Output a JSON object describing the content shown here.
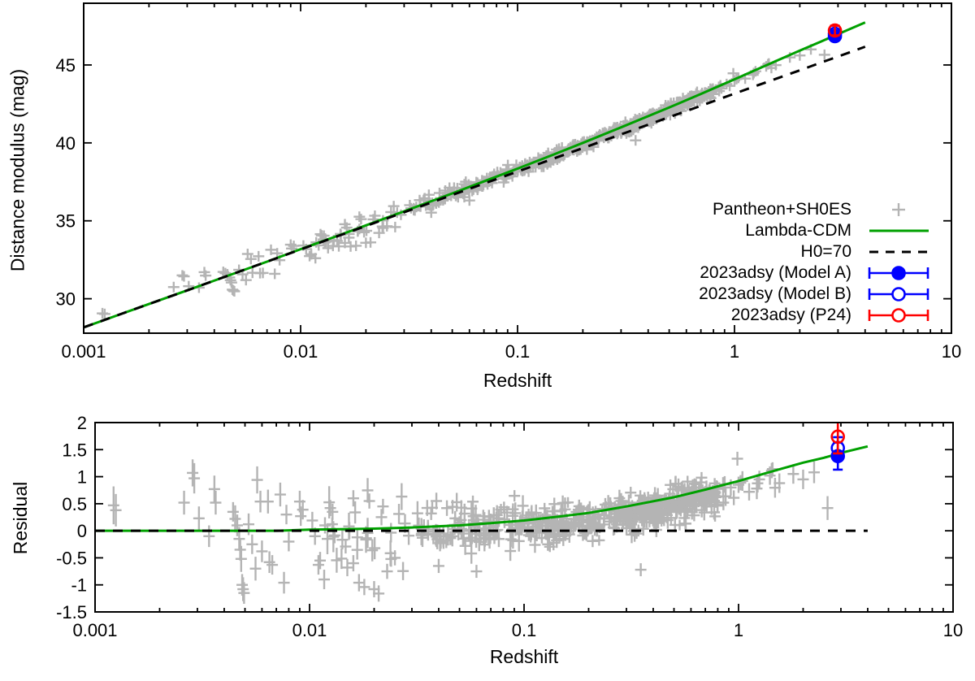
{
  "colors": {
    "pantheon": "#b4b4b4",
    "lcdm": "#00a000",
    "h070": "#000000",
    "model_a": "#0000ff",
    "model_b": "#0000ff",
    "p24": "#ff0000",
    "frame": "#000000",
    "background": "#ffffff"
  },
  "legend": {
    "entries": [
      {
        "label": "Pantheon+SH0ES",
        "sample": "plus",
        "color": "#b4b4b4"
      },
      {
        "label": "Lambda-CDM",
        "sample": "solid-line",
        "color": "#00a000"
      },
      {
        "label": "H0=70",
        "sample": "dashed-line",
        "color": "#000000"
      },
      {
        "label": "2023adsy (Model A)",
        "sample": "errorbar-filled-circle",
        "color": "#0000ff"
      },
      {
        "label": "2023adsy (Model B)",
        "sample": "errorbar-open-circle",
        "color": "#0000ff"
      },
      {
        "label": "2023adsy (P24)",
        "sample": "errorbar-open-circle",
        "color": "#ff0000"
      }
    ]
  },
  "chart_data": {
    "type": "scatter",
    "xscale": "log",
    "panels": [
      {
        "name": "hubble-diagram",
        "xlabel": "Redshift",
        "ylabel": "Distance modulus (mag)",
        "xlim": [
          0.001,
          10
        ],
        "ylim": [
          27.79,
          48.96
        ],
        "xtick_labels": [
          "0.001",
          "0.01",
          "0.1",
          "1",
          "10"
        ],
        "ytick_values": [
          30,
          35,
          40,
          45
        ],
        "ytick_labels": [
          "30",
          "35",
          "40",
          "45"
        ],
        "grid": false
      },
      {
        "name": "residuals",
        "xlabel": "Redshift",
        "ylabel": "Residual",
        "xlim": [
          0.001,
          10
        ],
        "ylim": [
          -1.5,
          2
        ],
        "xtick_labels": [
          "0.001",
          "0.01",
          "0.1",
          "1",
          "10"
        ],
        "ytick_values": [
          2,
          1.5,
          1,
          0.5,
          0,
          -0.5,
          -1,
          -1.5
        ],
        "ytick_labels": [
          "2",
          "1.5",
          "1",
          "0.5",
          "0",
          "-0.5",
          "-1",
          "-1.5"
        ],
        "grid": false
      }
    ],
    "models": {
      "note": "mu(z) samples; residual panel shows mu - mu_h070",
      "z": [
        0.001,
        0.0015,
        0.002,
        0.003,
        0.005,
        0.007,
        0.01,
        0.015,
        0.02,
        0.03,
        0.05,
        0.07,
        0.1,
        0.15,
        0.2,
        0.3,
        0.5,
        0.7,
        1.0,
        1.5,
        2.0,
        2.5,
        3.0,
        4.0
      ],
      "lcdm_mu": [
        28.16,
        29.04,
        29.66,
        30.54,
        31.65,
        32.38,
        33.18,
        34.07,
        34.71,
        35.61,
        36.76,
        37.53,
        38.35,
        39.31,
        40.0,
        41.0,
        42.27,
        43.14,
        44.08,
        45.16,
        45.92,
        46.5,
        46.98,
        47.73
      ],
      "h070_mu": [
        28.16,
        29.04,
        29.66,
        30.54,
        31.65,
        32.38,
        33.16,
        34.04,
        34.67,
        35.55,
        36.66,
        37.39,
        38.16,
        39.04,
        39.67,
        40.55,
        41.65,
        42.38,
        43.16,
        44.04,
        44.66,
        45.15,
        45.54,
        46.17
      ],
      "z_draw_max": 4.0
    },
    "sn2023adsy": {
      "z": 2.903,
      "points": [
        {
          "name": "2023adsy (Model A)",
          "mu": 46.85,
          "mu_err": 0.25,
          "residual": 1.38,
          "residual_err": 0.25,
          "marker": "filled-circle",
          "color": "#0000ff"
        },
        {
          "name": "2023adsy (Model B)",
          "mu": 47.0,
          "mu_err": 0.2,
          "residual": 1.53,
          "residual_err": 0.2,
          "marker": "open-circle",
          "color": "#0000ff"
        },
        {
          "name": "2023adsy (P24)",
          "mu": 47.21,
          "mu_err": 0.31,
          "residual": 1.74,
          "residual_err": 0.31,
          "marker": "open-circle",
          "color": "#ff0000"
        }
      ]
    },
    "pantheon": {
      "label": "Pantheon+SH0ES",
      "point_format": "[z, residual_vs_h070, err_mag]",
      "explicit_points": [
        [
          0.00122,
          0.47,
          0.35
        ],
        [
          0.00125,
          0.38,
          0.3
        ],
        [
          0.0026,
          0.52,
          0.22
        ],
        [
          0.00285,
          1.07,
          0.25
        ],
        [
          0.0029,
          0.97,
          0.28
        ],
        [
          0.00305,
          0.23,
          0.22
        ],
        [
          0.0034,
          -0.1,
          0.2
        ],
        [
          0.0036,
          0.77,
          0.25
        ],
        [
          0.00365,
          0.52,
          0.22
        ],
        [
          0.0044,
          0.35,
          0.18
        ],
        [
          0.0045,
          0.22,
          0.25
        ],
        [
          0.0046,
          0.1,
          0.2
        ],
        [
          0.0047,
          -0.15,
          0.22
        ],
        [
          0.00475,
          -0.35,
          0.2
        ],
        [
          0.0048,
          -0.52,
          0.24
        ],
        [
          0.00485,
          -1.0,
          0.2
        ],
        [
          0.0049,
          -1.08,
          0.22
        ],
        [
          0.00495,
          -1.15,
          0.2
        ],
        [
          0.0052,
          0.12,
          0.2
        ],
        [
          0.0054,
          -0.25,
          0.18
        ],
        [
          0.0056,
          -0.7,
          0.22
        ],
        [
          0.0057,
          0.94,
          0.25
        ],
        [
          0.0059,
          0.54,
          0.2
        ],
        [
          0.006,
          -0.38,
          0.2
        ],
        [
          0.0064,
          0.54,
          0.22
        ],
        [
          0.0065,
          -0.58,
          0.2
        ],
        [
          0.0067,
          -0.63,
          0.18
        ],
        [
          0.0073,
          0.67,
          0.22
        ],
        [
          0.0076,
          -0.96,
          0.2
        ],
        [
          0.0078,
          0.3,
          0.18
        ],
        [
          0.008,
          -0.2,
          0.18
        ],
        [
          0.009,
          0.54,
          0.2
        ],
        [
          0.0091,
          0.27,
          0.18
        ],
        [
          0.0093,
          0.39,
          0.18
        ],
        [
          0.0103,
          0.19,
          0.16
        ],
        [
          0.0106,
          -0.1,
          0.16
        ],
        [
          0.011,
          -0.63,
          0.18
        ],
        [
          0.0112,
          -0.55,
          0.16
        ],
        [
          0.0117,
          -0.9,
          0.18
        ],
        [
          0.0118,
          0.1,
          0.15
        ],
        [
          0.0125,
          0.42,
          0.15
        ],
        [
          0.0128,
          0.35,
          0.15
        ],
        [
          0.015,
          -0.68,
          0.16
        ],
        [
          0.016,
          -0.6,
          0.15
        ],
        [
          0.016,
          0.6,
          0.15
        ],
        [
          0.017,
          -0.96,
          0.16
        ],
        [
          0.018,
          -1.04,
          0.15
        ],
        [
          0.019,
          0.55,
          0.14
        ],
        [
          0.02,
          -1.08,
          0.15
        ],
        [
          0.021,
          -1.16,
          0.15
        ],
        [
          0.022,
          0.45,
          0.14
        ],
        [
          0.023,
          -0.75,
          0.14
        ],
        [
          0.025,
          -0.5,
          0.14
        ],
        [
          0.04,
          -0.65,
          0.13
        ],
        [
          0.06,
          -0.75,
          0.12
        ],
        [
          0.35,
          -0.72,
          0.12
        ],
        [
          0.85,
          0.52,
          0.14
        ],
        [
          0.92,
          0.8,
          0.15
        ],
        [
          1.0,
          0.85,
          0.15
        ],
        [
          1.12,
          0.72,
          0.16
        ],
        [
          1.25,
          0.95,
          0.16
        ],
        [
          1.4,
          1.02,
          0.17
        ],
        [
          1.55,
          0.88,
          0.18
        ],
        [
          1.8,
          1.05,
          0.18
        ],
        [
          2.0,
          0.95,
          0.18
        ],
        [
          2.25,
          1.08,
          0.2
        ],
        [
          2.6,
          0.42,
          0.22
        ]
      ],
      "cloud_spec": {
        "seed": 42,
        "comment": "dense indistinguishable scatter cloud; residual = trend(z) + dr + noise",
        "segments": [
          {
            "zmin": 0.012,
            "zmax": 0.032,
            "n": 30,
            "sigma": 0.3,
            "dr": -0.02,
            "err": [
              0.12,
              0.3
            ]
          },
          {
            "zmin": 0.032,
            "zmax": 0.1,
            "n": 115,
            "sigma": 0.2,
            "dr": -0.05,
            "err": [
              0.1,
              0.2
            ]
          },
          {
            "zmin": 0.1,
            "zmax": 0.3,
            "n": 200,
            "sigma": 0.15,
            "dr": -0.15,
            "err": [
              0.08,
              0.16
            ]
          },
          {
            "zmin": 0.3,
            "zmax": 0.8,
            "n": 250,
            "sigma": 0.15,
            "dr": -0.15,
            "err": [
              0.08,
              0.16
            ]
          },
          {
            "zmin": 0.8,
            "zmax": 1.6,
            "n": 12,
            "sigma": 0.18,
            "dr": -0.05,
            "err": [
              0.12,
              0.2
            ]
          }
        ]
      }
    }
  }
}
